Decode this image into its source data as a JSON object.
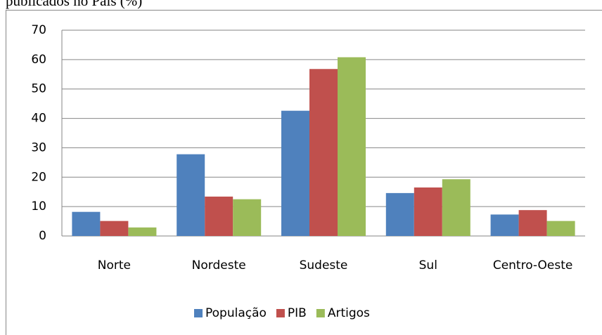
{
  "chart_data": {
    "type": "bar",
    "title": "publicados no País (%)",
    "categories": [
      "Norte",
      "Nordeste",
      "Sudeste",
      "Sul",
      "Centro-Oeste"
    ],
    "series": [
      {
        "name": "População",
        "color": "#4f81bd",
        "values": [
          8.2,
          27.8,
          42.6,
          14.6,
          7.3
        ]
      },
      {
        "name": "PIB",
        "color": "#c0504d",
        "values": [
          5.1,
          13.4,
          56.8,
          16.5,
          8.8
        ]
      },
      {
        "name": "Artigos",
        "color": "#9bbb59",
        "values": [
          2.9,
          12.5,
          60.8,
          19.3,
          5.1
        ]
      }
    ],
    "ylim": [
      0,
      70
    ],
    "yticks": [
      0,
      10,
      20,
      30,
      40,
      50,
      60,
      70
    ],
    "grid": true,
    "legend": "bottom"
  }
}
